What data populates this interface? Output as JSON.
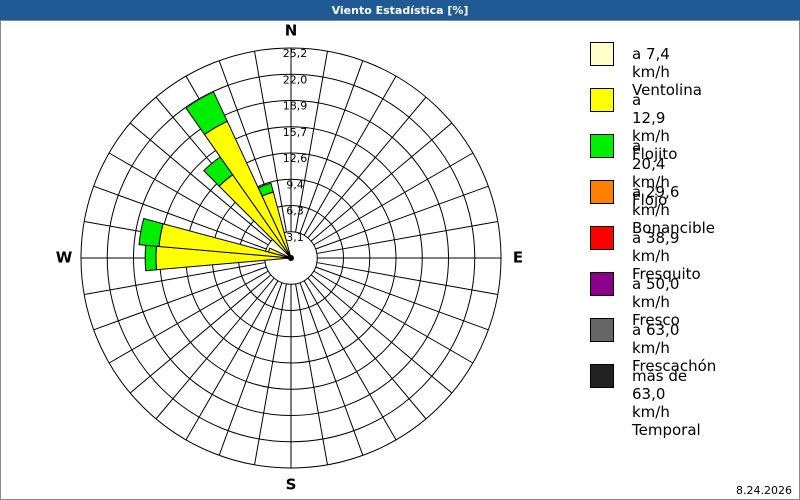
{
  "chart_data": {
    "type": "windrose",
    "title": "Viento Estadística [%]",
    "footer": "8.24.2026",
    "categories": [
      "N",
      null,
      null,
      null,
      null,
      null,
      null,
      null,
      null,
      "E",
      null,
      null,
      null,
      null,
      null,
      null,
      null,
      null,
      "S",
      null,
      null,
      null,
      null,
      null,
      null,
      null,
      null,
      "W",
      null,
      null,
      null,
      null,
      null,
      null,
      null,
      null
    ],
    "ylim": [
      0,
      25.2
    ],
    "yticks": [
      {
        "value": 3.15,
        "label": "3,1"
      },
      {
        "value": 6.3,
        "label": "6,3"
      },
      {
        "value": 9.45,
        "label": "9,4"
      },
      {
        "value": 12.6,
        "label": "12,6"
      },
      {
        "value": 15.75,
        "label": "15,7"
      },
      {
        "value": 18.9,
        "label": "18,9"
      },
      {
        "value": 22.05,
        "label": "22,0"
      },
      {
        "value": 25.2,
        "label": "25,2"
      }
    ],
    "series": [
      {
        "name": "a 7,4 km/h\nVentolina",
        "color": "#ffffc8",
        "values": [
          0,
          0,
          0,
          0,
          0,
          0,
          0,
          0,
          0,
          0,
          0,
          0,
          0,
          0,
          0,
          0,
          0,
          0,
          0,
          0,
          0,
          0,
          0,
          0,
          0,
          0,
          0,
          0.4,
          0.4,
          0.3,
          0,
          0,
          0.4,
          0.4,
          0.3,
          0
        ]
      },
      {
        "name": "a 12,9 km/h\nFlojito",
        "color": "#ffff00",
        "values": [
          0,
          0,
          0,
          0,
          0,
          0,
          0,
          0,
          0,
          0,
          0,
          0,
          0,
          0,
          0,
          0,
          0,
          0,
          0,
          0,
          0,
          0,
          0,
          0,
          0,
          0,
          0,
          15.8,
          15.5,
          2.5,
          0,
          0,
          11.8,
          17.7,
          7.9,
          0
        ]
      },
      {
        "name": "a 20,4 km/h\nFlojo",
        "color": "#00ee00",
        "values": [
          0,
          0,
          0,
          0,
          0,
          0,
          0,
          0,
          0,
          0,
          0,
          0,
          0,
          0,
          0,
          0,
          0,
          0,
          0,
          0,
          0,
          0,
          0,
          0,
          0,
          0,
          0,
          1.3,
          2.4,
          0,
          0,
          0,
          2.6,
          3.9,
          1.1,
          0
        ]
      },
      {
        "name": "a 29,6 km/h\nBonancible",
        "color": "#ff8000",
        "values": [
          0,
          0,
          0,
          0,
          0,
          0,
          0,
          0,
          0,
          0,
          0,
          0,
          0,
          0,
          0,
          0,
          0,
          0,
          0,
          0,
          0,
          0,
          0,
          0,
          0,
          0,
          0,
          0,
          0,
          0,
          0,
          0,
          0,
          0,
          0,
          0
        ]
      },
      {
        "name": "a 38,9 km/h\nFresquito",
        "color": "#ff0000",
        "values": [
          0,
          0,
          0,
          0,
          0,
          0,
          0,
          0,
          0,
          0,
          0,
          0,
          0,
          0,
          0,
          0,
          0,
          0,
          0,
          0,
          0,
          0,
          0,
          0,
          0,
          0,
          0,
          0,
          0,
          0,
          0,
          0,
          0,
          0,
          0,
          0
        ]
      },
      {
        "name": "a 50,0 km/h\nFresco",
        "color": "#8b008b",
        "values": [
          0,
          0,
          0,
          0,
          0,
          0,
          0,
          0,
          0,
          0,
          0,
          0,
          0,
          0,
          0,
          0,
          0,
          0,
          0,
          0,
          0,
          0,
          0,
          0,
          0,
          0,
          0,
          0,
          0,
          0,
          0,
          0,
          0,
          0,
          0,
          0
        ]
      },
      {
        "name": "a 63,0 km/h\nFrescachón",
        "color": "#666666",
        "values": [
          0,
          0,
          0,
          0,
          0,
          0,
          0,
          0,
          0,
          0,
          0,
          0,
          0,
          0,
          0,
          0,
          0,
          0,
          0,
          0,
          0,
          0,
          0,
          0,
          0,
          0,
          0,
          0,
          0,
          0,
          0,
          0,
          0,
          0,
          0,
          0
        ]
      },
      {
        "name": "más de 63,0 km/h\nTemporal",
        "color": "#222222",
        "values": [
          0,
          0,
          0,
          0,
          0,
          0,
          0,
          0,
          0,
          0,
          0,
          0,
          0,
          0,
          0,
          0,
          0,
          0,
          0,
          0,
          0,
          0,
          0,
          0,
          0,
          0,
          0,
          0,
          0,
          0,
          0,
          0,
          0,
          0,
          0,
          0
        ]
      }
    ]
  }
}
